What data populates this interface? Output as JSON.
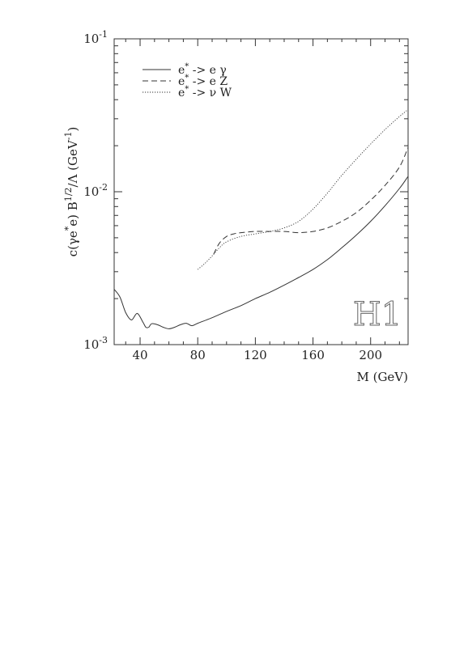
{
  "chart_data": {
    "type": "line",
    "xlabel": "M  (GeV)",
    "ylabel": "c(γe*e) B^1/2/Λ  (GeV⁻¹)",
    "ylabel_parts": {
      "pre": "c(γe",
      "star": "*",
      "mid": "e) B",
      "exp": "1/2",
      "post": "/Λ  (GeV",
      "unit_exp": "-1",
      "close": ")"
    },
    "xlim": [
      22,
      226
    ],
    "ylim": [
      0.001,
      0.1
    ],
    "yscale": "log",
    "xticks": [
      40,
      80,
      120,
      160,
      200
    ],
    "xtick_labels": [
      "40",
      "80",
      "120",
      "160",
      "200"
    ],
    "yticks": [
      0.001,
      0.01,
      0.1
    ],
    "ytick_labels": [
      {
        "base": "10",
        "exp": "-3"
      },
      {
        "base": "10",
        "exp": "-2"
      },
      {
        "base": "10",
        "exp": "-1"
      }
    ],
    "grid": false,
    "legend_position": "top-left",
    "logo_text": "H1",
    "series": [
      {
        "name": "e* -> e γ",
        "label_parts": {
          "pre": "e",
          "star": "*",
          "post": " -> e γ"
        },
        "style": "solid",
        "x": [
          22,
          26,
          30,
          34,
          38,
          42,
          44,
          46,
          48,
          52,
          56,
          60,
          64,
          68,
          72,
          76,
          80,
          90,
          100,
          110,
          120,
          130,
          140,
          150,
          160,
          170,
          180,
          190,
          200,
          210,
          220,
          226
        ],
        "y": [
          0.0023,
          0.00205,
          0.00162,
          0.00145,
          0.0016,
          0.0014,
          0.0013,
          0.0013,
          0.00137,
          0.00135,
          0.0013,
          0.00127,
          0.0013,
          0.00135,
          0.00138,
          0.00133,
          0.00138,
          0.0015,
          0.00165,
          0.0018,
          0.002,
          0.0022,
          0.00245,
          0.00275,
          0.0031,
          0.0036,
          0.0043,
          0.0052,
          0.0064,
          0.0081,
          0.0105,
          0.0126
        ]
      },
      {
        "name": "e* -> e Z",
        "label_parts": {
          "pre": "e",
          "star": "*",
          "post": " -> e Z"
        },
        "style": "dashed",
        "x": [
          91,
          95,
          100,
          105,
          110,
          120,
          130,
          140,
          150,
          160,
          170,
          180,
          190,
          200,
          210,
          220,
          226
        ],
        "y": [
          0.0039,
          0.0046,
          0.0051,
          0.0053,
          0.0054,
          0.0055,
          0.0055,
          0.0055,
          0.0054,
          0.0055,
          0.0058,
          0.0064,
          0.0073,
          0.0088,
          0.011,
          0.0145,
          0.0195
        ]
      },
      {
        "name": "e* -> ν W",
        "label_parts": {
          "pre": "e",
          "star": "*",
          "post": " -> ν W"
        },
        "style": "dotted",
        "x": [
          80,
          85,
          90,
          95,
          100,
          110,
          120,
          130,
          140,
          150,
          160,
          170,
          180,
          190,
          200,
          210,
          220,
          226
        ],
        "y": [
          0.0031,
          0.0034,
          0.0038,
          0.0043,
          0.0047,
          0.0051,
          0.0053,
          0.0055,
          0.0058,
          0.0064,
          0.0077,
          0.0098,
          0.0128,
          0.0163,
          0.0205,
          0.0255,
          0.031,
          0.0345
        ]
      }
    ]
  }
}
